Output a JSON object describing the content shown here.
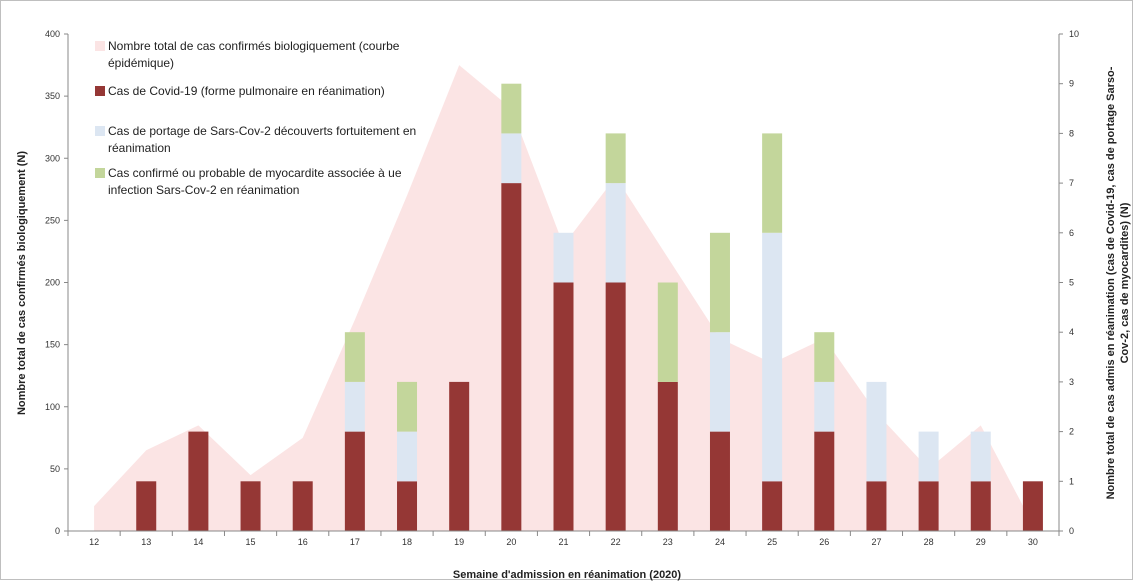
{
  "chart_data": {
    "type": "bar",
    "stacked": true,
    "categories": [
      "12",
      "13",
      "14",
      "15",
      "16",
      "17",
      "18",
      "19",
      "20",
      "21",
      "22",
      "23",
      "24",
      "25",
      "26",
      "27",
      "28",
      "29",
      "30"
    ],
    "xlabel": "Semaine d'admission en réanimation (2020)",
    "ylabel_left": "Nombre total de cas confirmés biologiquement (N)",
    "ylabel_right": [
      "Nombre total de cas admis en réanimation (cas de Covid-19, cas de portage  Sarso-",
      "Cov-2,   cas de myocardites) (N)"
    ],
    "ylim_left": [
      0,
      400
    ],
    "yticks_left": [
      0,
      50,
      100,
      150,
      200,
      250,
      300,
      350,
      400
    ],
    "ylim_right": [
      0,
      10
    ],
    "yticks_right": [
      0,
      1,
      2,
      3,
      4,
      5,
      6,
      7,
      8,
      9,
      10
    ],
    "area_series": {
      "name_lines": [
        "Nombre total de cas confirmés biologiquement (courbe",
        "épidémique)"
      ],
      "axis": "left",
      "color": "#fbe4e4",
      "values": [
        20,
        65,
        85,
        45,
        75,
        170,
        270,
        375,
        340,
        230,
        285,
        220,
        155,
        135,
        155,
        95,
        50,
        85,
        5
      ]
    },
    "series": [
      {
        "name_lines": [
          "Cas de Covid-19 (forme pulmonaire en réanimation)"
        ],
        "axis": "right",
        "color": "#953735",
        "values": [
          0,
          1,
          2,
          1,
          1,
          2,
          1,
          3,
          7,
          5,
          5,
          3,
          2,
          1,
          2,
          1,
          1,
          1,
          1
        ]
      },
      {
        "name_lines": [
          "Cas de portage de Sars-Cov-2 découverts fortuitement en",
          "réanimation"
        ],
        "axis": "right",
        "color": "#dce6f2",
        "values": [
          0,
          0,
          0,
          0,
          0,
          1,
          1,
          0,
          1,
          1,
          2,
          0,
          2,
          5,
          1,
          2,
          1,
          1,
          0
        ]
      },
      {
        "name_lines": [
          "Cas confirmé ou probable de myocardite associée à ue",
          "infection Sars-Cov-2 en réanimation"
        ],
        "axis": "right",
        "color": "#c3d69b",
        "values": [
          0,
          0,
          0,
          0,
          0,
          1,
          1,
          0,
          1,
          0,
          1,
          2,
          2,
          2,
          1,
          0,
          0,
          0,
          0
        ]
      }
    ],
    "legend_position": "top-left",
    "grid": false
  }
}
